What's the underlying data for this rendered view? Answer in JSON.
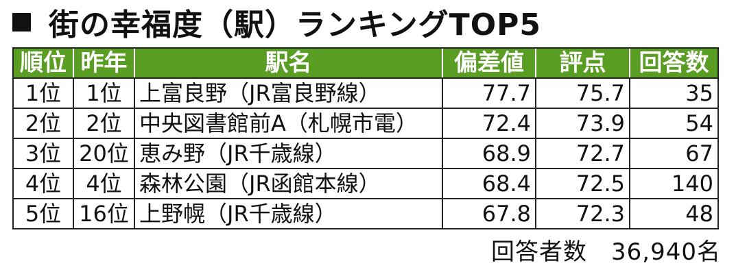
{
  "title": "街の幸福度（駅）ランキングTOP5",
  "table": {
    "headers": [
      "順位",
      "昨年",
      "駅名",
      "偏差値",
      "評点",
      "回答数"
    ],
    "rows": [
      {
        "rank": "1位",
        "last_year": "1位",
        "station": "上富良野（JR富良野線）",
        "deviation": "77.7",
        "score": "75.7",
        "responses": "35"
      },
      {
        "rank": "2位",
        "last_year": "2位",
        "station": "中央図書館前A（札幌市電）",
        "deviation": "72.4",
        "score": "73.9",
        "responses": "54"
      },
      {
        "rank": "3位",
        "last_year": "20位",
        "station": "恵み野（JR千歳線）",
        "deviation": "68.9",
        "score": "72.7",
        "responses": "67"
      },
      {
        "rank": "4位",
        "last_year": "4位",
        "station": "森林公園（JR函館本線）",
        "deviation": "68.4",
        "score": "72.5",
        "responses": "140"
      },
      {
        "rank": "5位",
        "last_year": "16位",
        "station": "上野幌（JR千歳線）",
        "deviation": "67.8",
        "score": "72.3",
        "responses": "48"
      }
    ]
  },
  "footer": "回答者数　36,940名",
  "colors": {
    "header_bg": "#5a9d23",
    "header_text": "#ffffff",
    "border": "#222222"
  }
}
